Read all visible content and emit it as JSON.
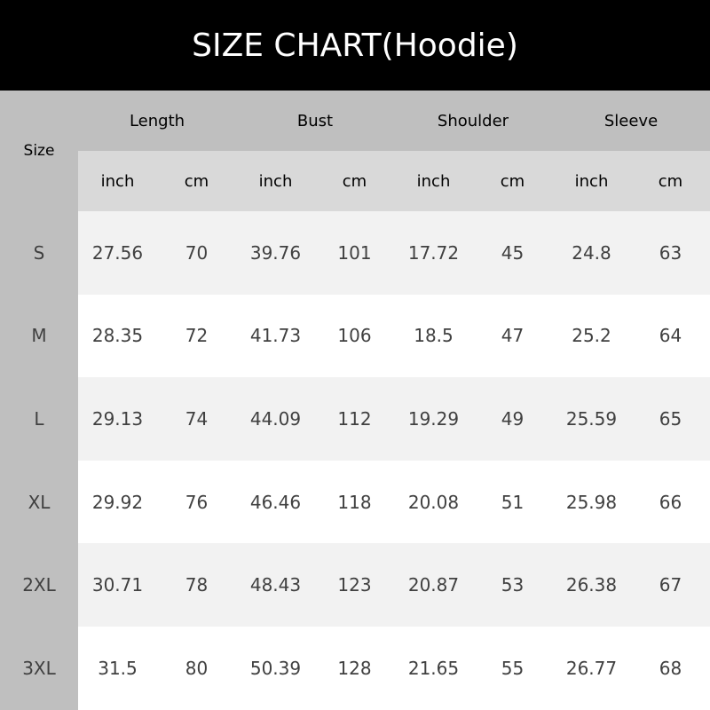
{
  "title": "SIZE CHART(Hoodie)",
  "size_header": "Size",
  "groups": [
    "Length",
    "Bust",
    "Shoulder",
    "Sleeve"
  ],
  "units": [
    "inch",
    "cm",
    "inch",
    "cm",
    "inch",
    "cm",
    "inch",
    "cm"
  ],
  "rows": [
    {
      "size": "S",
      "values": [
        "27.56",
        "70",
        "39.76",
        "101",
        "17.72",
        "45",
        "24.8",
        "63"
      ]
    },
    {
      "size": "M",
      "values": [
        "28.35",
        "72",
        "41.73",
        "106",
        "18.5",
        "47",
        "25.2",
        "64"
      ]
    },
    {
      "size": "L",
      "values": [
        "29.13",
        "74",
        "44.09",
        "112",
        "19.29",
        "49",
        "25.59",
        "65"
      ]
    },
    {
      "size": "XL",
      "values": [
        "29.92",
        "76",
        "46.46",
        "118",
        "20.08",
        "51",
        "25.98",
        "66"
      ]
    },
    {
      "size": "2XL",
      "values": [
        "30.71",
        "78",
        "48.43",
        "123",
        "20.87",
        "53",
        "26.38",
        "67"
      ]
    },
    {
      "size": "3XL",
      "values": [
        "31.5",
        "80",
        "50.39",
        "128",
        "21.65",
        "55",
        "26.77",
        "68"
      ]
    }
  ]
}
